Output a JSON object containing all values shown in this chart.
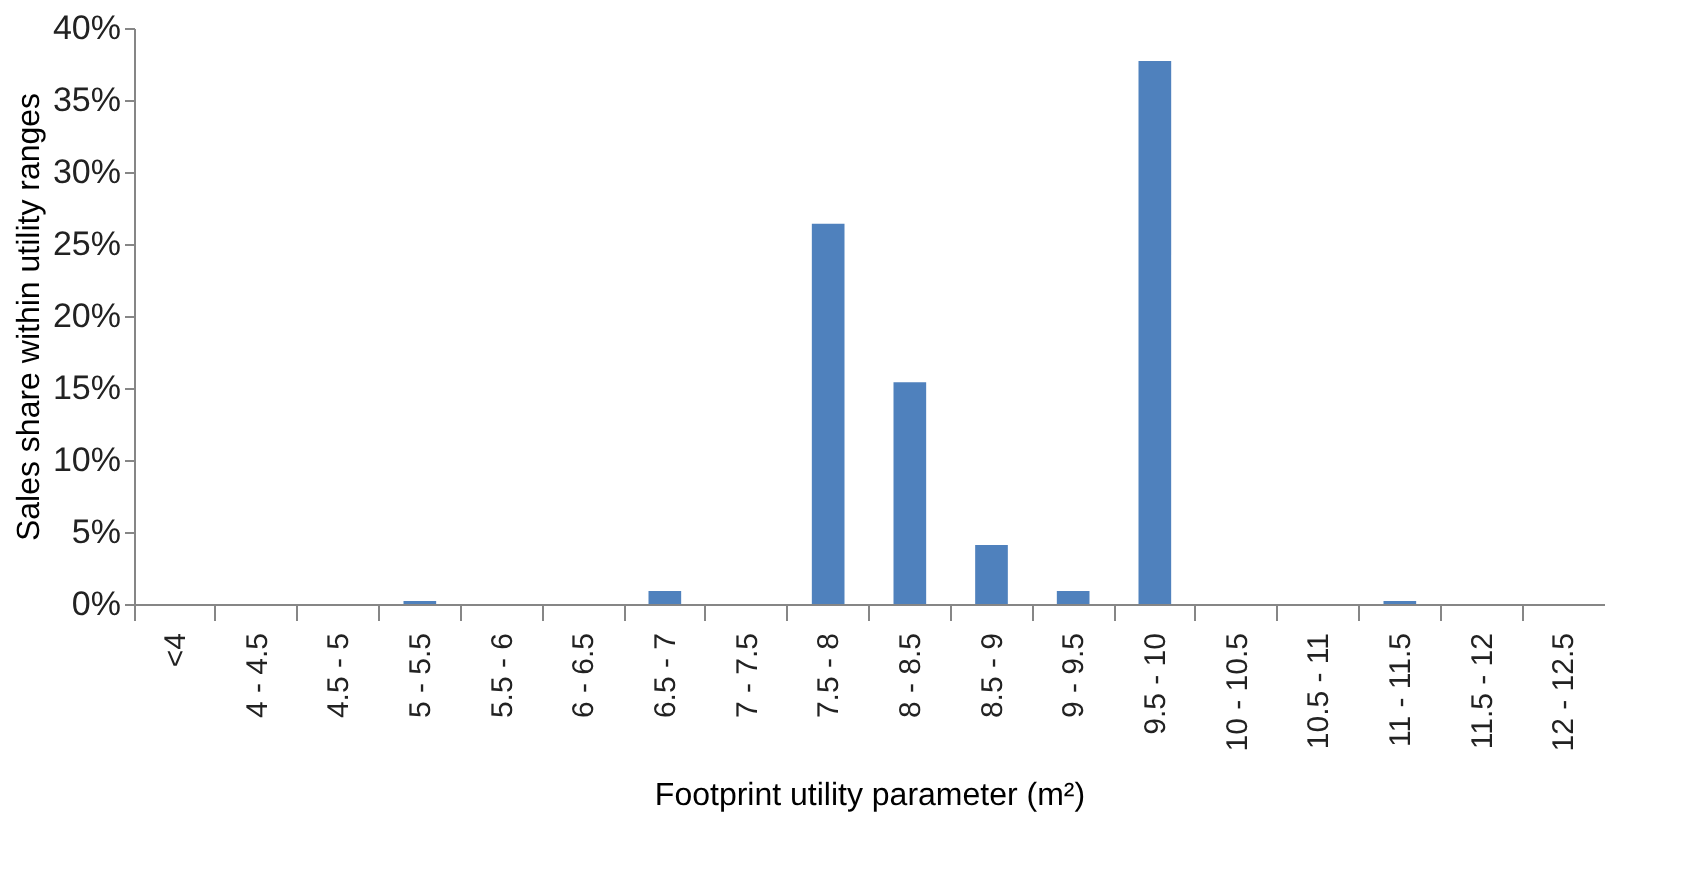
{
  "chart_data": {
    "type": "bar",
    "categories": [
      "<4",
      "4 - 4.5",
      "4.5 - 5",
      "5 - 5.5",
      "5.5 - 6",
      "6 - 6.5",
      "6.5 - 7",
      "7 - 7.5",
      "7.5 - 8",
      "8 - 8.5",
      "8.5 - 9",
      "9 - 9.5",
      "9.5 - 10",
      "10 - 10.5",
      "10.5 - 11",
      "11 - 11.5",
      "11.5 - 12",
      "12 - 12.5"
    ],
    "values": [
      0,
      0,
      0,
      0.2,
      0,
      0,
      0.9,
      0,
      26.4,
      15.4,
      4.1,
      0.9,
      37.7,
      0,
      0,
      0.2,
      0,
      0
    ],
    "color": "#4f81bd",
    "xlabel": "Footprint utility parameter (m²)",
    "ylabel": "Sales share within utility ranges",
    "ylim": [
      0,
      40
    ],
    "yticks": [
      {
        "value": 0,
        "label": "0%"
      },
      {
        "value": 5,
        "label": "5%"
      },
      {
        "value": 10,
        "label": "10%"
      },
      {
        "value": 15,
        "label": "15%"
      },
      {
        "value": 20,
        "label": "20%"
      },
      {
        "value": 25,
        "label": "25%"
      },
      {
        "value": 30,
        "label": "30%"
      },
      {
        "value": 35,
        "label": "35%"
      },
      {
        "value": 40,
        "label": "40%"
      }
    ],
    "grid": false
  }
}
